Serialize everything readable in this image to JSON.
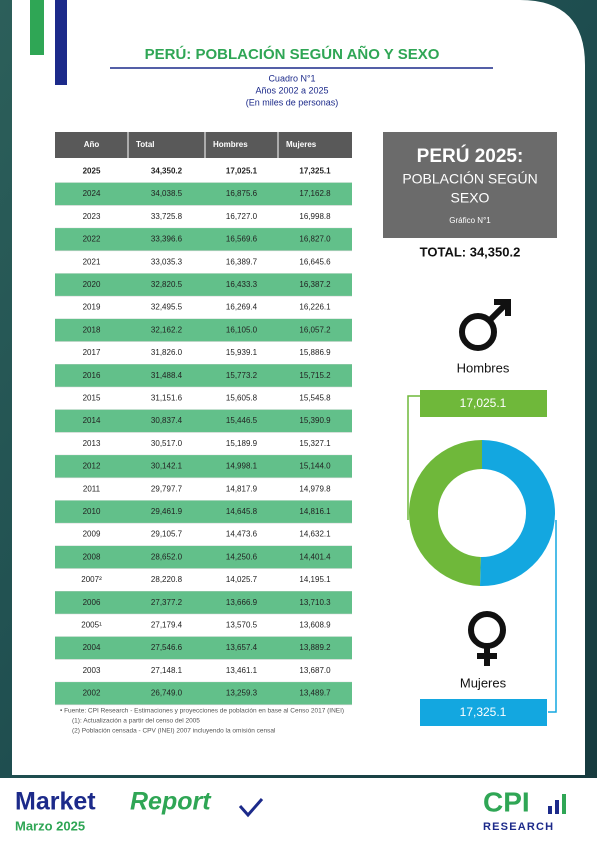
{
  "header": {
    "title": "PERÚ: POBLACIÓN SEGÚN AÑO Y SEXO",
    "lines": [
      "Cuadro N°1",
      "Años 2002 a 2025",
      "(En miles de personas)"
    ]
  },
  "table": {
    "columns": [
      "Año",
      "Total",
      "Hombres",
      "Mujeres"
    ],
    "rows": [
      [
        "2025",
        "34,350.2",
        "17,025.1",
        "17,325.1"
      ],
      [
        "2024",
        "34,038.5",
        "16,875.6",
        "17,162.8"
      ],
      [
        "2023",
        "33,725.8",
        "16,727.0",
        "16,998.8"
      ],
      [
        "2022",
        "33,396.6",
        "16,569.6",
        "16,827.0"
      ],
      [
        "2021",
        "33,035.3",
        "16,389.7",
        "16,645.6"
      ],
      [
        "2020",
        "32,820.5",
        "16,433.3",
        "16,387.2"
      ],
      [
        "2019",
        "32,495.5",
        "16,269.4",
        "16,226.1"
      ],
      [
        "2018",
        "32,162.2",
        "16,105.0",
        "16,057.2"
      ],
      [
        "2017",
        "31,826.0",
        "15,939.1",
        "15,886.9"
      ],
      [
        "2016",
        "31,488.4",
        "15,773.2",
        "15,715.2"
      ],
      [
        "2015",
        "31,151.6",
        "15,605.8",
        "15,545.8"
      ],
      [
        "2014",
        "30,837.4",
        "15,446.5",
        "15,390.9"
      ],
      [
        "2013",
        "30,517.0",
        "15,189.9",
        "15,327.1"
      ],
      [
        "2012",
        "30,142.1",
        "14,998.1",
        "15,144.0"
      ],
      [
        "2011",
        "29,797.7",
        "14,817.9",
        "14,979.8"
      ],
      [
        "2010",
        "29,461.9",
        "14,645.8",
        "14,816.1"
      ],
      [
        "2009",
        "29,105.7",
        "14,473.6",
        "14,632.1"
      ],
      [
        "2008",
        "28,652.0",
        "14,250.6",
        "14,401.4"
      ],
      [
        "2007²",
        "28,220.8",
        "14,025.7",
        "14,195.1"
      ],
      [
        "2006",
        "27,377.2",
        "13,666.9",
        "13,710.3"
      ],
      [
        "2005¹",
        "27,179.4",
        "13,570.5",
        "13,608.9"
      ],
      [
        "2004",
        "27,546.6",
        "13,657.4",
        "13,889.2"
      ],
      [
        "2003",
        "27,148.1",
        "13,461.1",
        "13,687.0"
      ],
      [
        "2002",
        "26,749.0",
        "13,259.3",
        "13,489.7"
      ]
    ]
  },
  "notes": [
    "•  Fuente: CPI Research - Estimaciones y proyecciones de población en base al Censo 2017 (INEI)",
    "(1): Actualización a partir del censo del 2005",
    "(2) Población censada - CPV (INEI) 2007 incluyendo la omisión censal"
  ],
  "panel": {
    "title": "PERÚ 2025:",
    "subtitle": [
      "POBLACIÓN SEGÚN",
      "SEXO"
    ],
    "caption": "Gráfico N°1",
    "total": "TOTAL: 34,350.2"
  },
  "chart_data": {
    "type": "donut",
    "categories": [
      "Hombres",
      "Mujeres"
    ],
    "values": [
      17025.1,
      17325.1
    ],
    "value_labels": [
      "17,025.1",
      "17,325.1"
    ],
    "colors": [
      "#6fb83a",
      "#13a7e0"
    ]
  },
  "footer": {
    "brand": [
      "Market",
      "Report"
    ],
    "date": "Marzo 2025",
    "logo": [
      "CPI",
      "RESEARCH"
    ]
  }
}
